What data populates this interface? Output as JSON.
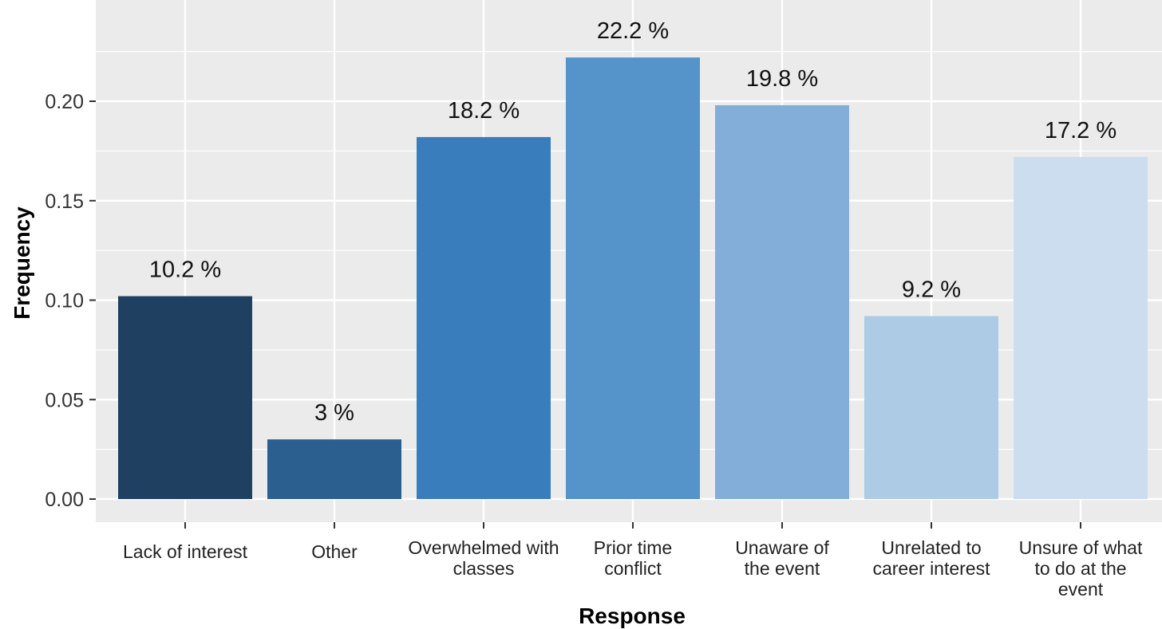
{
  "chart_data": {
    "type": "bar",
    "xlabel": "Response",
    "ylabel": "Frequency",
    "ylim": [
      0,
      0.25
    ],
    "yticks": [
      0.0,
      0.05,
      0.1,
      0.15,
      0.2
    ],
    "ytick_labels": [
      "0.00",
      "0.05",
      "0.10",
      "0.15",
      "0.20"
    ],
    "grid": true,
    "categories": [
      [
        "Lack of interest"
      ],
      [
        "Other"
      ],
      [
        "Overwhelmed with",
        "classes"
      ],
      [
        "Prior time",
        "conflict"
      ],
      [
        "Unaware of",
        "the event"
      ],
      [
        "Unrelated to",
        "career interest"
      ],
      [
        "Unsure of what",
        "to do at the",
        "event"
      ]
    ],
    "values": [
      0.102,
      0.03,
      0.182,
      0.222,
      0.198,
      0.092,
      0.172
    ],
    "data_labels": [
      "10.2 %",
      "3 %",
      "18.2 %",
      "22.2 %",
      "19.8 %",
      "9.2 %",
      "17.2 %"
    ],
    "colors": [
      "#1F4061",
      "#2B5F8F",
      "#3A7DBD",
      "#5593CB",
      "#82AED9",
      "#AECBE6",
      "#CCDDEF"
    ],
    "panel_background": "#EBEBEB",
    "grid_color": "#FFFFFF"
  }
}
